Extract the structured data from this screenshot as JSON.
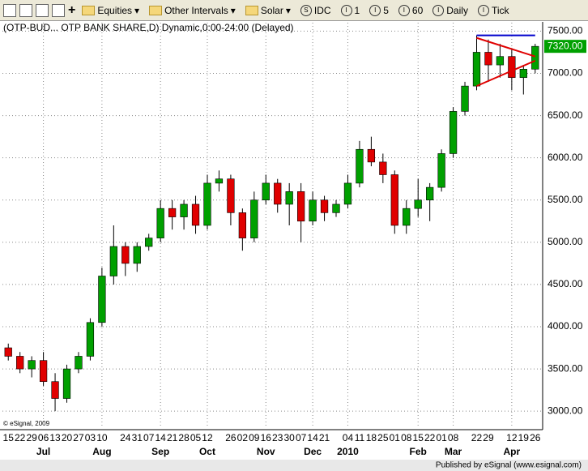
{
  "toolbar": {
    "items": [
      "Equities",
      "Other Intervals",
      "Solar",
      "IDC",
      "1",
      "5",
      "60",
      "Daily",
      "Tick"
    ]
  },
  "chart_data": {
    "type": "candlestick",
    "title": "(OTP-BUD... OTP BANK SHARE,D) Dynamic,0:00-24:00 (Delayed)",
    "copyright": "© eSignal, 2009",
    "footer": "Published by eSignal (www.esignal.com)",
    "categories": [
      "15",
      "22",
      "29",
      "06",
      "13",
      "20",
      "27",
      "03",
      "10",
      null,
      "24",
      "31",
      "07",
      "14",
      "21",
      "28",
      "05",
      "12",
      null,
      "26",
      "02",
      "09",
      "16",
      "23",
      "30",
      "07",
      "14",
      "21",
      null,
      "04",
      "11",
      "18",
      "25",
      "01",
      "08",
      "15",
      "22",
      "01",
      "08",
      null,
      "22",
      "29",
      null,
      "12",
      "19",
      "26"
    ],
    "months": [
      null,
      null,
      null,
      "Jul",
      null,
      null,
      null,
      null,
      "Aug",
      null,
      null,
      null,
      null,
      "Sep",
      null,
      null,
      null,
      "Oct",
      null,
      null,
      null,
      null,
      "Nov",
      null,
      null,
      null,
      "Dec",
      null,
      null,
      "2010",
      null,
      null,
      null,
      null,
      null,
      "Feb",
      null,
      null,
      "Mar",
      null,
      null,
      null,
      null,
      "Apr",
      null,
      null
    ],
    "open": [
      3750,
      3650,
      3500,
      3600,
      3350,
      3150,
      3500,
      3650,
      4050,
      4600,
      4950,
      4750,
      4950,
      5050,
      5400,
      5300,
      5450,
      5200,
      5700,
      5750,
      5350,
      5050,
      5500,
      5700,
      5450,
      5600,
      5250,
      5500,
      5350,
      5450,
      5700,
      6100,
      5950,
      5800,
      5200,
      5400,
      5500,
      5650,
      6050,
      6550,
      6850,
      7250,
      7100,
      7200,
      6950,
      7050
    ],
    "high": [
      3800,
      3700,
      3650,
      3700,
      3450,
      3550,
      3700,
      4100,
      4700,
      5200,
      5000,
      5000,
      5100,
      5500,
      5500,
      5500,
      5550,
      5800,
      5850,
      5800,
      5400,
      5600,
      5800,
      5750,
      5700,
      5700,
      5600,
      5550,
      5500,
      5800,
      6200,
      6250,
      6050,
      5850,
      5500,
      5750,
      5700,
      6100,
      6600,
      6900,
      7450,
      7400,
      7350,
      7300,
      7100,
      7350
    ],
    "low": [
      3600,
      3450,
      3400,
      3300,
      3000,
      3100,
      3450,
      3600,
      4000,
      4500,
      4600,
      4650,
      4900,
      5000,
      5150,
      5150,
      5100,
      5150,
      5600,
      5200,
      4900,
      5000,
      5450,
      5350,
      5200,
      5000,
      5200,
      5250,
      5300,
      5400,
      5650,
      5900,
      5700,
      5100,
      5100,
      5300,
      5250,
      5600,
      6000,
      6500,
      6800,
      6900,
      6950,
      6800,
      6750,
      7000
    ],
    "close": [
      3650,
      3500,
      3600,
      3350,
      3150,
      3500,
      3650,
      4050,
      4600,
      4950,
      4750,
      4950,
      5050,
      5400,
      5300,
      5450,
      5200,
      5700,
      5750,
      5350,
      5050,
      5500,
      5700,
      5450,
      5600,
      5250,
      5500,
      5350,
      5450,
      5700,
      6100,
      5950,
      5800,
      5200,
      5400,
      5500,
      5650,
      6050,
      6550,
      6850,
      7250,
      7100,
      7200,
      6950,
      7050,
      7320
    ],
    "up_color": "#00a000",
    "down_color": "#e00000",
    "ylim": [
      2800,
      7600
    ],
    "yticks": [
      {
        "value": 3000,
        "label": "3000.00"
      },
      {
        "value": 3500,
        "label": "3500.00"
      },
      {
        "value": 4000,
        "label": "4000.00"
      },
      {
        "value": 4500,
        "label": "4500.00"
      },
      {
        "value": 5000,
        "label": "5000.00"
      },
      {
        "value": 5500,
        "label": "5500.00"
      },
      {
        "value": 6000,
        "label": "6000.00"
      },
      {
        "value": 6500,
        "label": "6500.00"
      },
      {
        "value": 7000,
        "label": "7000.00"
      },
      {
        "value": 7500,
        "label": "7500.00"
      }
    ],
    "last_price": {
      "value": 7320,
      "label": "7320.00"
    },
    "grid": true,
    "trendlines": [
      {
        "color": "#0000cc",
        "from": [
          40,
          7450
        ],
        "to": [
          45,
          7450
        ]
      },
      {
        "color": "#e00000",
        "from": [
          40,
          7420
        ],
        "to": [
          45,
          7200
        ]
      },
      {
        "color": "#e00000",
        "from": [
          40,
          6850
        ],
        "to": [
          45,
          7150
        ]
      }
    ]
  }
}
